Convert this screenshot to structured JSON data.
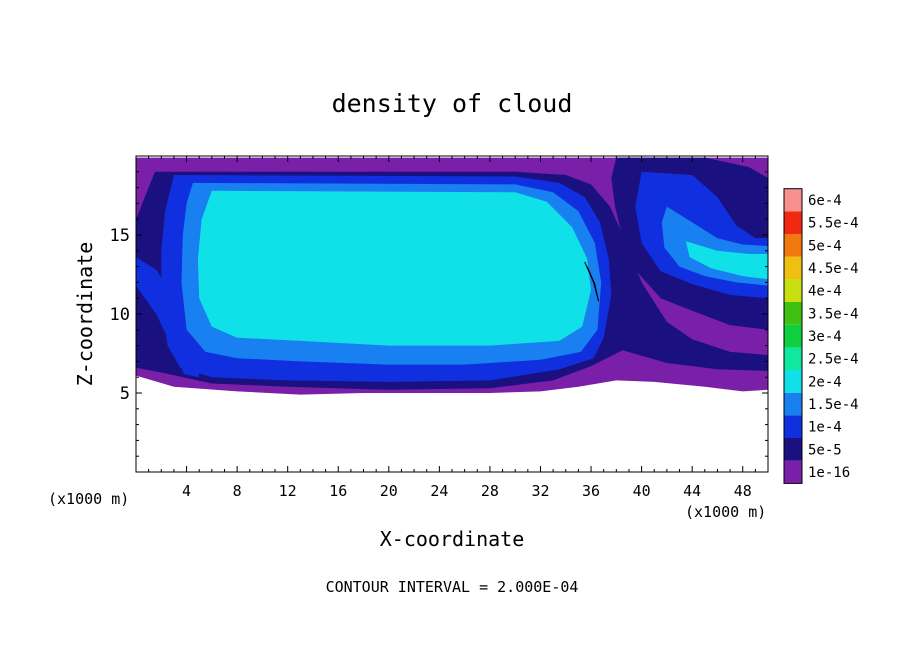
{
  "chart_data": {
    "type": "heatmap",
    "title": "density of cloud",
    "xlabel": "X-coordinate",
    "ylabel": "Z-coordinate",
    "x_unit": "(x1000 m)",
    "xlim": [
      0,
      50
    ],
    "ylim": [
      0,
      20
    ],
    "x_ticks": [
      4,
      8,
      12,
      16,
      20,
      24,
      28,
      32,
      36,
      40,
      44,
      48
    ],
    "y_ticks": [
      5,
      10,
      15
    ],
    "footer": "CONTOUR INTERVAL = 2.000E-04",
    "colorbar": {
      "labels": [
        "1e-16",
        "5e-5",
        "1e-4",
        "1.5e-4",
        "2e-4",
        "2.5e-4",
        "3e-4",
        "3.5e-4",
        "4e-4",
        "4.5e-4",
        "5e-4",
        "5.5e-4",
        "6e-4"
      ],
      "colors": [
        "#7a1fa8",
        "#1a1080",
        "#1030e0",
        "#1880f0",
        "#10e0e8",
        "#10e8a0",
        "#10d040",
        "#40c010",
        "#c8e010",
        "#f0c010",
        "#f07a10",
        "#f02a10",
        "#f89090"
      ]
    },
    "regions": [
      {
        "name": "cloud-base-envelope",
        "level": "1e-16",
        "points": [
          [
            0,
            6.1
          ],
          [
            3,
            5.4
          ],
          [
            8,
            5.1
          ],
          [
            13,
            4.9
          ],
          [
            18,
            5.0
          ],
          [
            23,
            5.0
          ],
          [
            28,
            5.0
          ],
          [
            32,
            5.1
          ],
          [
            35,
            5.4
          ],
          [
            38,
            5.8
          ],
          [
            41,
            5.7
          ],
          [
            45,
            5.4
          ],
          [
            48,
            5.1
          ],
          [
            50,
            5.2
          ],
          [
            50,
            19.9
          ],
          [
            0,
            19.9
          ]
        ]
      },
      {
        "name": "main-cloud-outer",
        "level": "5e-5",
        "points": [
          [
            1.5,
            19.0
          ],
          [
            30,
            19.0
          ],
          [
            34,
            18.8
          ],
          [
            36,
            18.2
          ],
          [
            37.5,
            16.8
          ],
          [
            38.8,
            14.5
          ],
          [
            40,
            12.0
          ],
          [
            42,
            9.5
          ],
          [
            44,
            8.4
          ],
          [
            47,
            7.6
          ],
          [
            50,
            7.4
          ],
          [
            50,
            6.4
          ],
          [
            46,
            6.5
          ],
          [
            42,
            6.9
          ],
          [
            38.5,
            7.7
          ],
          [
            36,
            6.7
          ],
          [
            33,
            5.8
          ],
          [
            28,
            5.3
          ],
          [
            20,
            5.2
          ],
          [
            12,
            5.4
          ],
          [
            6,
            5.6
          ],
          [
            2,
            6.3
          ],
          [
            0,
            6.6
          ],
          [
            0,
            16.0
          ],
          [
            1.0,
            18.0
          ]
        ]
      },
      {
        "name": "main-cloud-body",
        "level": "1e-4",
        "points": [
          [
            3,
            18.8
          ],
          [
            30,
            18.7
          ],
          [
            33.5,
            18.3
          ],
          [
            35.5,
            17.4
          ],
          [
            36.7,
            15.8
          ],
          [
            37.4,
            13.5
          ],
          [
            37.6,
            11.2
          ],
          [
            37.0,
            8.5
          ],
          [
            36.2,
            7.2
          ],
          [
            33.5,
            6.5
          ],
          [
            28,
            5.8
          ],
          [
            20,
            5.7
          ],
          [
            12,
            5.8
          ],
          [
            6,
            6.0
          ],
          [
            3.5,
            6.6
          ],
          [
            2.5,
            8.0
          ],
          [
            2.0,
            11.0
          ],
          [
            2.0,
            14.0
          ],
          [
            2.3,
            16.5
          ]
        ]
      },
      {
        "name": "main-cloud-inner",
        "level": "1.5e-4",
        "points": [
          [
            4.5,
            18.3
          ],
          [
            30,
            18.2
          ],
          [
            33,
            17.7
          ],
          [
            35,
            16.5
          ],
          [
            36.3,
            14.5
          ],
          [
            36.8,
            12.0
          ],
          [
            36.5,
            9.0
          ],
          [
            35.2,
            7.6
          ],
          [
            32,
            7.1
          ],
          [
            26,
            6.8
          ],
          [
            20,
            6.8
          ],
          [
            13,
            7.0
          ],
          [
            8,
            7.2
          ],
          [
            5.5,
            7.6
          ],
          [
            4.0,
            9.0
          ],
          [
            3.6,
            12.0
          ],
          [
            3.7,
            15.0
          ],
          [
            4.0,
            17.0
          ]
        ]
      },
      {
        "name": "main-cloud-core",
        "level": "2e-4",
        "points": [
          [
            6,
            17.8
          ],
          [
            30,
            17.7
          ],
          [
            32.5,
            17.1
          ],
          [
            34.5,
            15.5
          ],
          [
            35.7,
            13.5
          ],
          [
            36.0,
            11.5
          ],
          [
            35.3,
            9.2
          ],
          [
            33.5,
            8.3
          ],
          [
            28,
            8.0
          ],
          [
            20,
            8.0
          ],
          [
            13,
            8.3
          ],
          [
            8,
            8.5
          ],
          [
            6.0,
            9.2
          ],
          [
            5.0,
            11.0
          ],
          [
            4.9,
            13.5
          ],
          [
            5.2,
            16.0
          ]
        ]
      },
      {
        "name": "left-band",
        "level": "1e-4",
        "points": [
          [
            0,
            13.6
          ],
          [
            1.6,
            12.8
          ],
          [
            3.0,
            11.0
          ],
          [
            4.0,
            9.0
          ],
          [
            4.8,
            7.0
          ],
          [
            5.0,
            6.0
          ],
          [
            3.8,
            6.2
          ],
          [
            2.8,
            8.0
          ],
          [
            1.6,
            10.0
          ],
          [
            0,
            11.8
          ]
        ]
      },
      {
        "name": "right-cloud-outer",
        "level": "5e-5",
        "points": [
          [
            38,
            19.9
          ],
          [
            45,
            19.9
          ],
          [
            48.5,
            19.3
          ],
          [
            50,
            18.6
          ],
          [
            50,
            9.0
          ],
          [
            47,
            9.3
          ],
          [
            44,
            10.2
          ],
          [
            41.5,
            11.0
          ],
          [
            39.5,
            12.8
          ],
          [
            38.5,
            14.8
          ],
          [
            37.9,
            16.8
          ],
          [
            37.6,
            18.6
          ]
        ]
      },
      {
        "name": "right-cloud-body",
        "level": "1e-4",
        "points": [
          [
            40,
            19.0
          ],
          [
            44,
            18.8
          ],
          [
            46,
            17.4
          ],
          [
            47.5,
            15.6
          ],
          [
            49,
            14.8
          ],
          [
            50,
            14.8
          ],
          [
            50,
            11.0
          ],
          [
            47,
            11.2
          ],
          [
            44,
            11.9
          ],
          [
            41.5,
            12.7
          ],
          [
            40.0,
            14.5
          ],
          [
            39.5,
            16.8
          ]
        ]
      },
      {
        "name": "right-cloud-inner",
        "level": "1.5e-4",
        "points": [
          [
            42,
            16.8
          ],
          [
            44,
            15.8
          ],
          [
            46,
            14.8
          ],
          [
            48,
            14.4
          ],
          [
            50,
            14.3
          ],
          [
            50,
            11.8
          ],
          [
            47.5,
            12.0
          ],
          [
            45,
            12.4
          ],
          [
            43,
            13.0
          ],
          [
            41.8,
            14.2
          ],
          [
            41.6,
            15.8
          ]
        ]
      },
      {
        "name": "right-cloud-core",
        "level": "2e-4",
        "points": [
          [
            43.5,
            14.6
          ],
          [
            46,
            14.0
          ],
          [
            48.5,
            13.8
          ],
          [
            50,
            13.8
          ],
          [
            50,
            12.2
          ],
          [
            48,
            12.4
          ],
          [
            45.5,
            12.9
          ],
          [
            43.8,
            13.6
          ]
        ]
      }
    ],
    "annotations": [
      {
        "name": "contour-line",
        "points": [
          [
            35.5,
            13.3
          ],
          [
            36.2,
            12.0
          ],
          [
            36.6,
            10.8
          ],
          [
            36.3,
            11.9
          ],
          [
            35.7,
            13.0
          ]
        ]
      }
    ]
  }
}
